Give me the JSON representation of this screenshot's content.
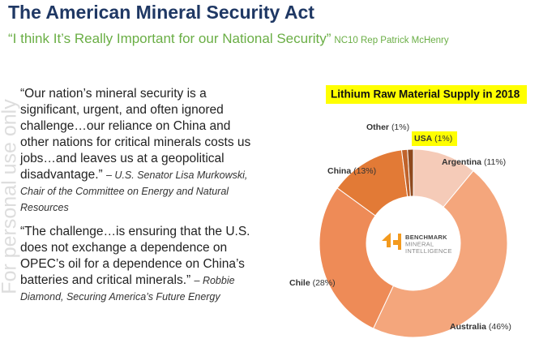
{
  "header": {
    "title": "The American Mineral Security Act",
    "subtitle_quote": "“I think It’s Really Important for our National Security”",
    "subtitle_source": "NC10 Rep Patrick McHenry"
  },
  "watermark": "For personal use only",
  "quotes": [
    {
      "text": "“Our nation’s mineral security is a significant, urgent, and often ignored challenge…our reliance on China and other nations for critical minerals costs us jobs…and leaves us at a geopolitical disadvantage.”",
      "attribution": "– U.S. Senator Lisa Murkowski, Chair of the Committee on Energy and Natural Resources"
    },
    {
      "text": "“The challenge…is ensuring that the U.S. does not exchange a dependence on OPEC’s oil for a dependence on China’s batteries and critical minerals.”",
      "attribution": "– Robbie Diamond, Securing America’s Future Energy"
    }
  ],
  "chart_data": {
    "type": "pie",
    "title": "Lithium Raw Material Supply in 2018",
    "categories": [
      "Argentina",
      "Australia",
      "Chile",
      "China",
      "Other",
      "USA"
    ],
    "values": [
      11,
      46,
      28,
      13,
      1,
      1
    ],
    "value_labels": [
      "(11%)",
      "(46%)",
      "(28%)",
      "(13%)",
      "(1%)",
      "(1%)"
    ],
    "colors": [
      "#f5cbb8",
      "#f4a67c",
      "#ee8b57",
      "#e27a36",
      "#c0632b",
      "#8f4a1e"
    ],
    "donut": true,
    "center_logo": [
      "BENCHMARK",
      "MINERAL",
      "INTELLIGENCE"
    ]
  }
}
